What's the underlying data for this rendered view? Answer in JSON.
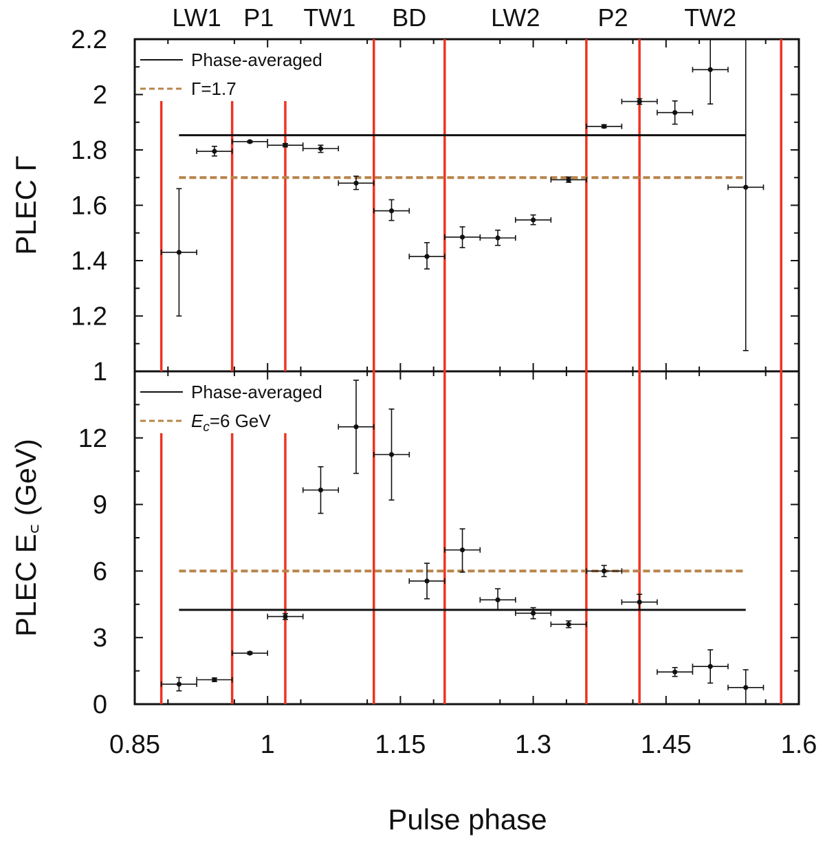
{
  "chart_data": {
    "type": "scatter",
    "xlabel": "Pulse phase",
    "xlim": [
      0.85,
      1.6
    ],
    "xticks": [
      "0.85",
      "1",
      "1.15",
      "1.3",
      "1.45",
      "1.6"
    ],
    "xtick_values": [
      0.85,
      1.0,
      1.15,
      1.3,
      1.45,
      1.6
    ],
    "regions": [
      {
        "label": "LW1",
        "x_start": 0.88,
        "x_end": 0.96
      },
      {
        "label": "P1",
        "x_start": 0.96,
        "x_end": 1.02
      },
      {
        "label": "TW1",
        "x_start": 1.02,
        "x_end": 1.12
      },
      {
        "label": "BD",
        "x_start": 1.12,
        "x_end": 1.2
      },
      {
        "label": "LW2",
        "x_start": 1.2,
        "x_end": 1.36
      },
      {
        "label": "P2",
        "x_start": 1.36,
        "x_end": 1.42
      },
      {
        "label": "TW2",
        "x_start": 1.42,
        "x_end": 1.58
      }
    ],
    "boundaries": [
      0.88,
      0.96,
      1.02,
      1.12,
      1.2,
      1.36,
      1.42,
      1.58
    ],
    "panels": [
      {
        "ylabel": "PLEC Γ",
        "ylim": [
          1.0,
          2.2
        ],
        "yticks": [
          "1",
          "1.2",
          "1.4",
          "1.6",
          "1.8",
          "2",
          "2.2"
        ],
        "ytick_values": [
          1.0,
          1.2,
          1.4,
          1.6,
          1.8,
          2.0,
          2.2
        ],
        "minor_y_step": 0.1,
        "legend": {
          "location": "top-left",
          "solid_label": "Phase-averaged",
          "dashed_label": "Γ=1.7"
        },
        "phase_averaged": {
          "value": 1.853,
          "x_range": [
            0.9,
            1.54
          ]
        },
        "reference": {
          "value": 1.7,
          "x_range": [
            0.9,
            1.54
          ]
        },
        "points": [
          {
            "x": 0.9,
            "y": 1.43,
            "xerr": 0.02,
            "ylo": 1.2,
            "yhi": 1.66
          },
          {
            "x": 0.94,
            "y": 1.795,
            "xerr": 0.02,
            "ylo": 1.778,
            "yhi": 1.813
          },
          {
            "x": 0.98,
            "y": 1.83,
            "xerr": 0.02,
            "ylo": 1.826,
            "yhi": 1.833
          },
          {
            "x": 1.02,
            "y": 1.817,
            "xerr": 0.02,
            "ylo": 1.811,
            "yhi": 1.823
          },
          {
            "x": 1.06,
            "y": 1.805,
            "xerr": 0.02,
            "ylo": 1.791,
            "yhi": 1.817
          },
          {
            "x": 1.1,
            "y": 1.68,
            "xerr": 0.02,
            "ylo": 1.657,
            "yhi": 1.705
          },
          {
            "x": 1.14,
            "y": 1.58,
            "xerr": 0.02,
            "ylo": 1.545,
            "yhi": 1.62
          },
          {
            "x": 1.18,
            "y": 1.415,
            "xerr": 0.02,
            "ylo": 1.37,
            "yhi": 1.465
          },
          {
            "x": 1.22,
            "y": 1.485,
            "xerr": 0.02,
            "ylo": 1.447,
            "yhi": 1.522
          },
          {
            "x": 1.26,
            "y": 1.482,
            "xerr": 0.02,
            "ylo": 1.455,
            "yhi": 1.51
          },
          {
            "x": 1.3,
            "y": 1.547,
            "xerr": 0.02,
            "ylo": 1.53,
            "yhi": 1.565
          },
          {
            "x": 1.34,
            "y": 1.692,
            "xerr": 0.02,
            "ylo": 1.683,
            "yhi": 1.702
          },
          {
            "x": 1.38,
            "y": 1.885,
            "xerr": 0.02,
            "ylo": 1.88,
            "yhi": 1.891
          },
          {
            "x": 1.42,
            "y": 1.975,
            "xerr": 0.02,
            "ylo": 1.965,
            "yhi": 1.985
          },
          {
            "x": 1.46,
            "y": 1.935,
            "xerr": 0.02,
            "ylo": 1.893,
            "yhi": 1.977
          },
          {
            "x": 1.5,
            "y": 2.09,
            "xerr": 0.02,
            "ylo": 1.966,
            "yhi": 2.2
          },
          {
            "x": 1.54,
            "y": 1.665,
            "xerr": 0.02,
            "ylo": 1.075,
            "yhi": 2.2
          }
        ]
      },
      {
        "ylabel": "PLEC E꜀ (GeV)",
        "ylim": [
          0,
          15
        ],
        "yticks": [
          "0",
          "3",
          "6",
          "9",
          "12"
        ],
        "ytick_values": [
          0,
          3,
          6,
          9,
          12
        ],
        "minor_y_step": 1.5,
        "legend": {
          "location": "top-left",
          "solid_label": "Phase-averaged",
          "dashed_label_italic": "E",
          "dashed_label_sub": "c",
          "dashed_label_rest": "=6 GeV"
        },
        "phase_averaged": {
          "value": 4.25,
          "x_range": [
            0.9,
            1.54
          ]
        },
        "reference": {
          "value": 6.0,
          "x_range": [
            0.9,
            1.54
          ]
        },
        "points": [
          {
            "x": 0.9,
            "y": 0.9,
            "xerr": 0.02,
            "ylo": 0.6,
            "yhi": 1.2
          },
          {
            "x": 0.94,
            "y": 1.1,
            "xerr": 0.02,
            "ylo": 1.02,
            "yhi": 1.18
          },
          {
            "x": 0.98,
            "y": 2.3,
            "xerr": 0.02,
            "ylo": 2.25,
            "yhi": 2.36
          },
          {
            "x": 1.02,
            "y": 3.95,
            "xerr": 0.02,
            "ylo": 3.82,
            "yhi": 4.08
          },
          {
            "x": 1.06,
            "y": 9.65,
            "xerr": 0.02,
            "ylo": 8.6,
            "yhi": 10.7
          },
          {
            "x": 1.1,
            "y": 12.5,
            "xerr": 0.02,
            "ylo": 10.4,
            "yhi": 14.6
          },
          {
            "x": 1.14,
            "y": 11.25,
            "xerr": 0.02,
            "ylo": 9.2,
            "yhi": 13.3
          },
          {
            "x": 1.18,
            "y": 5.55,
            "xerr": 0.02,
            "ylo": 4.75,
            "yhi": 6.35
          },
          {
            "x": 1.22,
            "y": 6.95,
            "xerr": 0.02,
            "ylo": 5.95,
            "yhi": 7.9
          },
          {
            "x": 1.26,
            "y": 4.7,
            "xerr": 0.02,
            "ylo": 4.25,
            "yhi": 5.2
          },
          {
            "x": 1.3,
            "y": 4.1,
            "xerr": 0.02,
            "ylo": 3.85,
            "yhi": 4.35
          },
          {
            "x": 1.34,
            "y": 3.6,
            "xerr": 0.02,
            "ylo": 3.45,
            "yhi": 3.75
          },
          {
            "x": 1.38,
            "y": 6.0,
            "xerr": 0.02,
            "ylo": 5.75,
            "yhi": 6.25
          },
          {
            "x": 1.42,
            "y": 4.6,
            "xerr": 0.02,
            "ylo": 4.25,
            "yhi": 4.95
          },
          {
            "x": 1.46,
            "y": 1.45,
            "xerr": 0.02,
            "ylo": 1.25,
            "yhi": 1.65
          },
          {
            "x": 1.5,
            "y": 1.7,
            "xerr": 0.02,
            "ylo": 0.95,
            "yhi": 2.45
          },
          {
            "x": 1.54,
            "y": 0.75,
            "xerr": 0.02,
            "ylo": 0.0,
            "yhi": 1.55
          }
        ]
      }
    ],
    "colors": {
      "boundary": "#ee3322",
      "reference": "#b8844a",
      "phase_averaged": "#111111",
      "points": "#111111"
    }
  }
}
